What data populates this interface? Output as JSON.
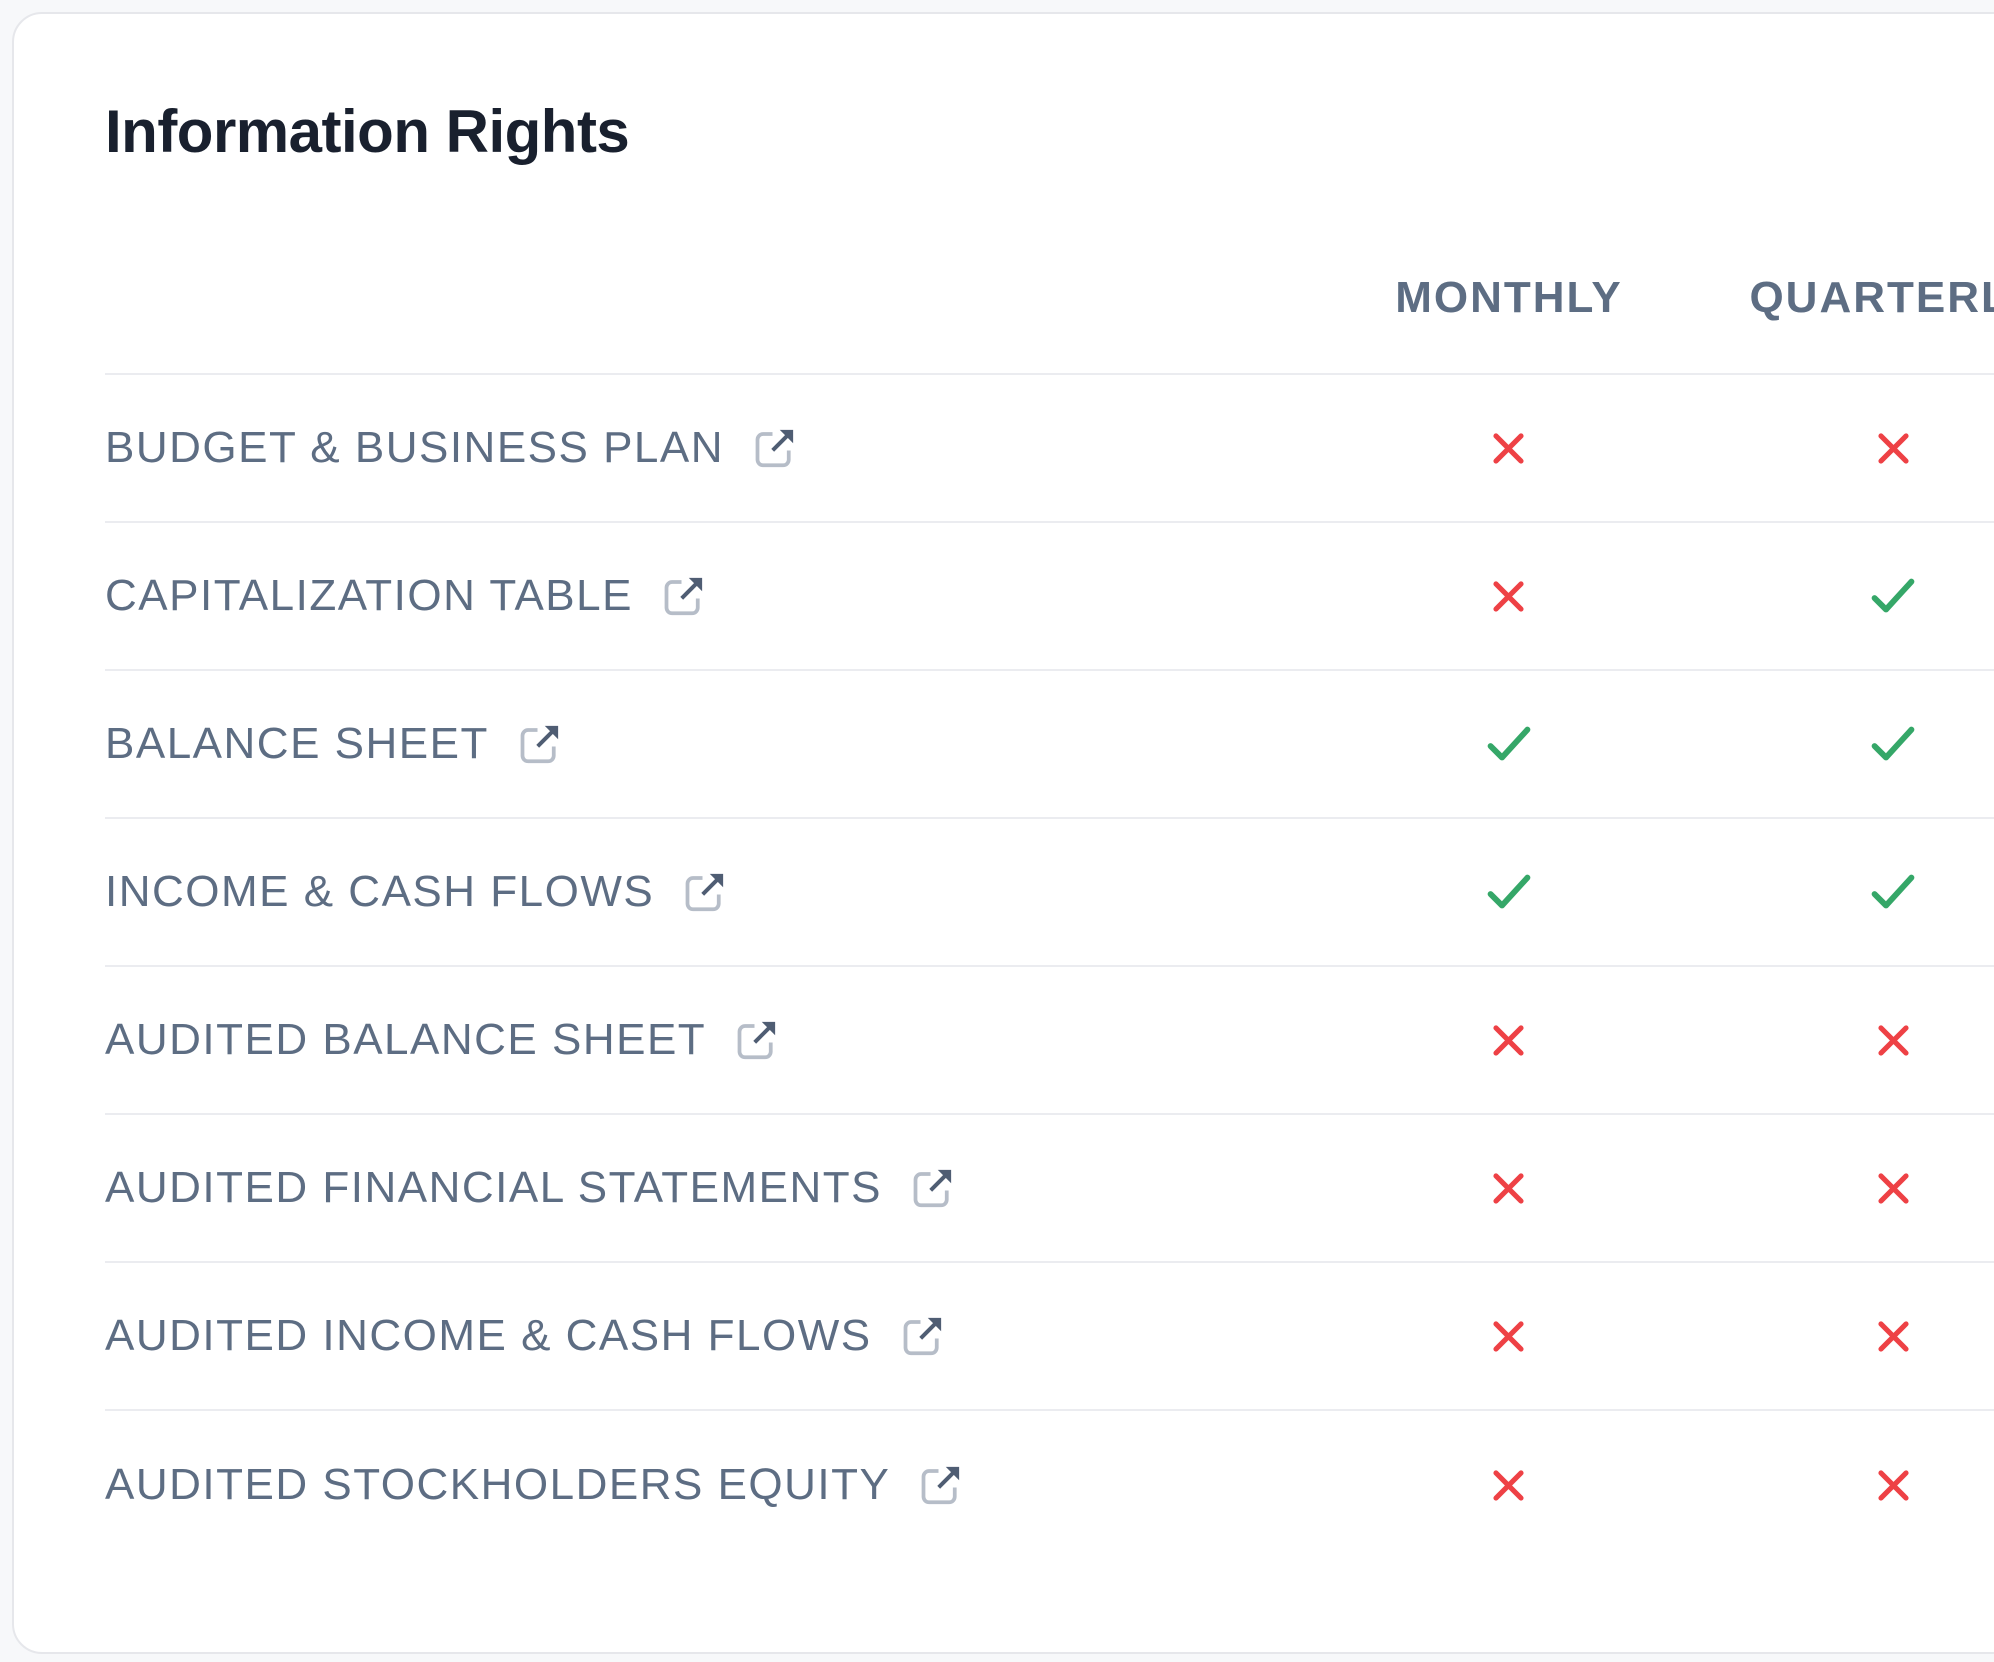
{
  "card": {
    "title": "Information Rights"
  },
  "table": {
    "column_headers": [
      "MONTHLY",
      "QUARTERLY"
    ],
    "rows": [
      {
        "label": "BUDGET & BUSINESS PLAN",
        "monthly": false,
        "quarterly": false
      },
      {
        "label": "CAPITALIZATION TABLE",
        "monthly": false,
        "quarterly": true
      },
      {
        "label": "BALANCE SHEET",
        "monthly": true,
        "quarterly": true
      },
      {
        "label": "INCOME & CASH FLOWS",
        "monthly": true,
        "quarterly": true
      },
      {
        "label": "AUDITED BALANCE SHEET",
        "monthly": false,
        "quarterly": false
      },
      {
        "label": "AUDITED FINANCIAL STATEMENTS",
        "monthly": false,
        "quarterly": false
      },
      {
        "label": "AUDITED INCOME & CASH FLOWS",
        "monthly": false,
        "quarterly": false
      },
      {
        "label": "AUDITED STOCKHOLDERS EQUITY",
        "monthly": false,
        "quarterly": false
      }
    ],
    "row_link_icon": "external-link-icon",
    "mark_icons": {
      "granted": "check-icon",
      "denied": "cross-icon"
    }
  },
  "colors": {
    "title": "#19202e",
    "header_text": "#5d6d83",
    "label_text": "#5d6d83",
    "check": "#35a768",
    "cross": "#ee4145",
    "divider": "#ebecf0",
    "page_background": "#f7f8fa",
    "card_border": "#e6e7eb"
  }
}
